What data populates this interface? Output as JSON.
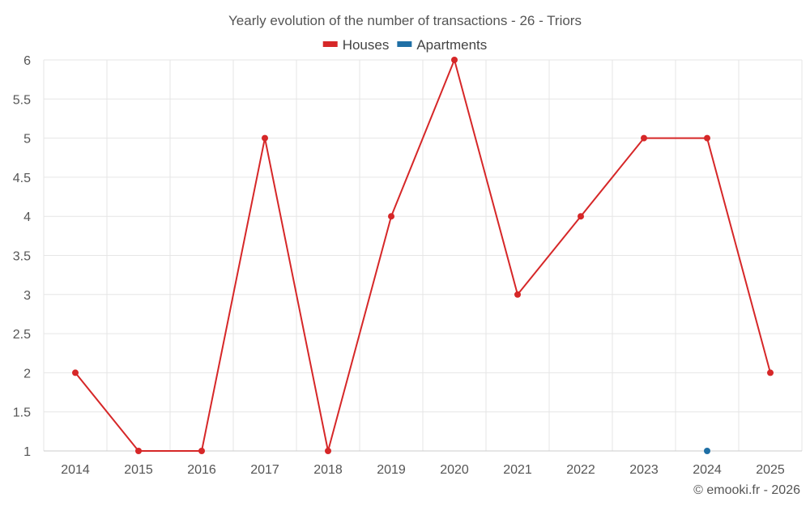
{
  "chart_data": {
    "type": "line",
    "title": "Yearly evolution of the number of transactions - 26 - Triors",
    "xlabel": "",
    "ylabel": "",
    "categories": [
      "2014",
      "2015",
      "2016",
      "2017",
      "2018",
      "2019",
      "2020",
      "2021",
      "2022",
      "2023",
      "2024",
      "2025"
    ],
    "ylim": [
      1,
      6
    ],
    "yticks": [
      "1",
      "1.5",
      "2",
      "2.5",
      "3",
      "3.5",
      "4",
      "4.5",
      "5",
      "5.5",
      "6"
    ],
    "grid": true,
    "legend_position": "top-center",
    "series": [
      {
        "name": "Houses",
        "color": "#d62728",
        "values": [
          2,
          1,
          1,
          5,
          1,
          4,
          6,
          3,
          4,
          5,
          5,
          2
        ]
      },
      {
        "name": "Apartments",
        "color": "#1f6fa5",
        "values": [
          null,
          null,
          null,
          null,
          null,
          null,
          null,
          null,
          null,
          null,
          1,
          null
        ]
      }
    ]
  },
  "credit": "© emooki.fr - 2026"
}
